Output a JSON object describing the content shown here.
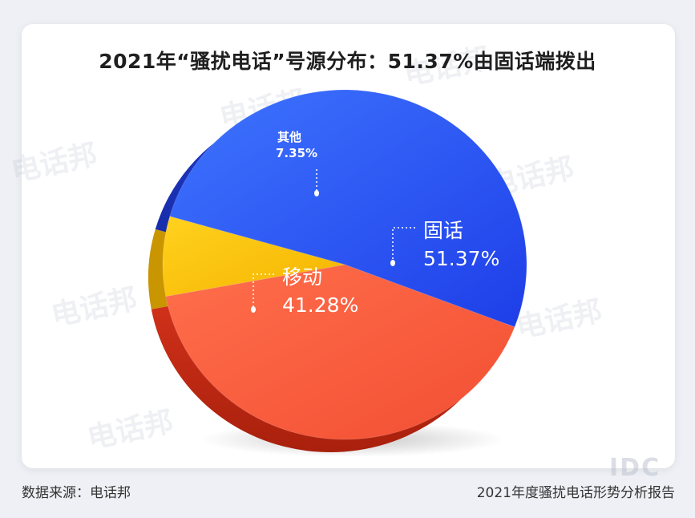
{
  "title": "2021年“骚扰电话”号源分布：51.37%由固话端拨出",
  "watermark": "电话邦",
  "footer": {
    "source": "数据来源：电话邦",
    "report": "2021年度骚扰电话形势分析报告"
  },
  "chart_data": {
    "type": "pie",
    "title": "2021年“骚扰电话”号源分布：51.37%由固话端拨出",
    "slices": [
      {
        "label": "固话",
        "value": 51.37,
        "display": "51.37%",
        "color": "#2d57f0"
      },
      {
        "label": "移动",
        "value": 41.28,
        "display": "41.28%",
        "color": "#f75c3c"
      },
      {
        "label": "其他",
        "value": 7.35,
        "display": "7.35%",
        "color": "#fbc314"
      }
    ]
  }
}
